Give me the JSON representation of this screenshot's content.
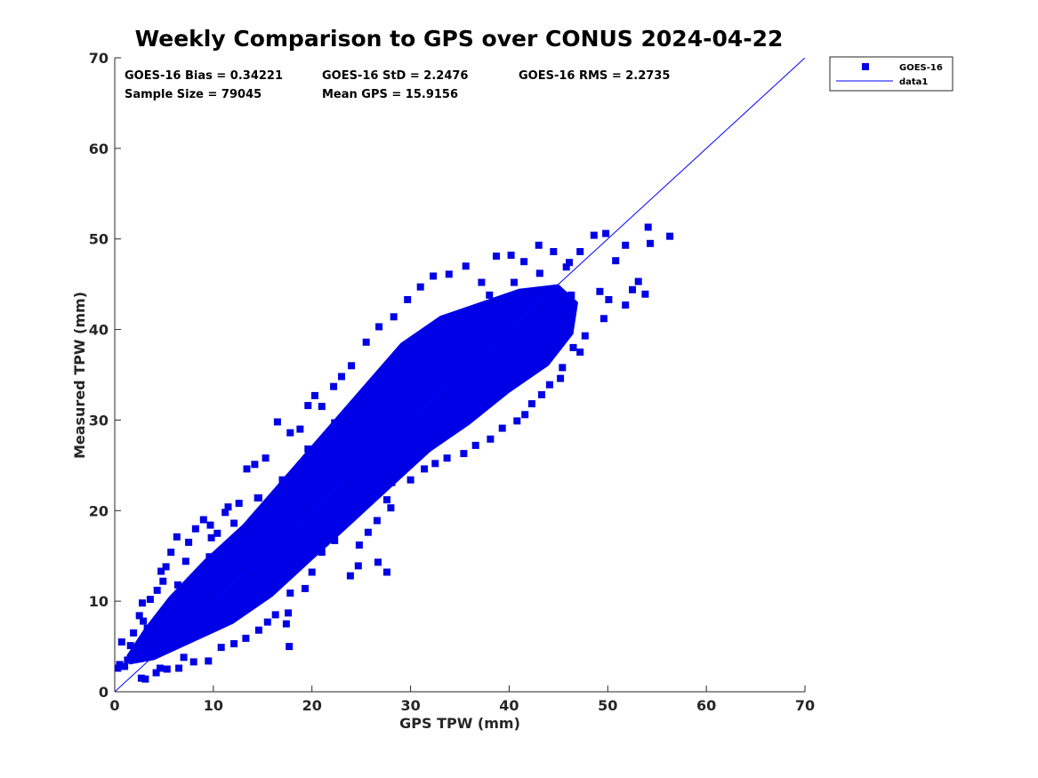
{
  "chart_data": {
    "type": "scatter",
    "title": "Weekly Comparison to GPS over CONUS 2024-04-22",
    "xlabel": "GPS TPW (mm)",
    "ylabel": "Measured TPW (mm)",
    "xlim": [
      0,
      70
    ],
    "ylim": [
      0,
      70
    ],
    "xticks": [
      "0",
      "10",
      "20",
      "30",
      "40",
      "50",
      "60",
      "70"
    ],
    "yticks": [
      "0",
      "10",
      "20",
      "30",
      "40",
      "50",
      "60",
      "70"
    ],
    "grid": false,
    "legend_position": "outside top-right",
    "colors": {
      "marker": "#0000e6",
      "line": "#0000ff"
    },
    "stats": [
      "GOES-16 Bias = 0.34221",
      "GOES-16 StD = 2.2476",
      "GOES-16 RMS = 2.2735",
      "Sample Size = 79045",
      "Mean GPS = 15.9156"
    ],
    "series": [
      {
        "name": "GOES-16",
        "kind": "scatter",
        "marker": "square",
        "points": [
          [
            0.3,
            2.6
          ],
          [
            0.5,
            3.0
          ],
          [
            0.7,
            5.5
          ],
          [
            1.0,
            2.8
          ],
          [
            1.3,
            3.5
          ],
          [
            1.6,
            5.1
          ],
          [
            1.9,
            6.5
          ],
          [
            2.2,
            4.2
          ],
          [
            2.5,
            8.4
          ],
          [
            2.8,
            9.8
          ],
          [
            2.7,
            1.5
          ],
          [
            3.1,
            1.4
          ],
          [
            3.3,
            7.0
          ],
          [
            3.6,
            10.2
          ],
          [
            4.0,
            4.8
          ],
          [
            4.3,
            11.2
          ],
          [
            4.7,
            13.3
          ],
          [
            4.6,
            2.6
          ],
          [
            5.2,
            13.8
          ],
          [
            5.7,
            15.4
          ],
          [
            6.3,
            17.1
          ],
          [
            7.0,
            3.8
          ],
          [
            7.5,
            16.5
          ],
          [
            8.2,
            18.0
          ],
          [
            9.0,
            19.0
          ],
          [
            9.7,
            18.4
          ],
          [
            10.4,
            17.5
          ],
          [
            11.2,
            19.8
          ],
          [
            11.5,
            20.4
          ],
          [
            12.6,
            20.8
          ],
          [
            13.4,
            24.6
          ],
          [
            14.2,
            25.1
          ],
          [
            15.3,
            25.8
          ],
          [
            16.5,
            29.8
          ],
          [
            17.0,
            23.4
          ],
          [
            17.8,
            28.6
          ],
          [
            18.8,
            29.0
          ],
          [
            19.6,
            31.6
          ],
          [
            20.3,
            32.7
          ],
          [
            21.0,
            31.5
          ],
          [
            22.2,
            33.7
          ],
          [
            23.0,
            34.8
          ],
          [
            24.0,
            36.0
          ],
          [
            25.5,
            38.6
          ],
          [
            26.8,
            40.3
          ],
          [
            28.3,
            41.4
          ],
          [
            29.7,
            43.3
          ],
          [
            31.0,
            44.7
          ],
          [
            32.3,
            45.9
          ],
          [
            33.9,
            46.1
          ],
          [
            35.6,
            47.0
          ],
          [
            37.2,
            45.2
          ],
          [
            38.7,
            48.1
          ],
          [
            40.2,
            48.2
          ],
          [
            41.5,
            47.5
          ],
          [
            43.0,
            49.3
          ],
          [
            44.5,
            48.6
          ],
          [
            46.1,
            47.4
          ],
          [
            47.2,
            48.6
          ],
          [
            48.6,
            50.4
          ],
          [
            49.8,
            50.6
          ],
          [
            50.8,
            47.6
          ],
          [
            51.8,
            49.3
          ],
          [
            53.1,
            45.3
          ],
          [
            54.1,
            51.3
          ],
          [
            54.3,
            49.5
          ],
          [
            56.3,
            50.3
          ],
          [
            49.2,
            44.2
          ],
          [
            50.1,
            43.3
          ],
          [
            51.8,
            42.7
          ],
          [
            52.5,
            44.4
          ],
          [
            53.8,
            43.9
          ],
          [
            49.6,
            41.2
          ],
          [
            47.7,
            39.3
          ],
          [
            47.2,
            37.5
          ],
          [
            46.5,
            38.0
          ],
          [
            45.4,
            35.8
          ],
          [
            45.2,
            34.6
          ],
          [
            44.1,
            33.9
          ],
          [
            43.3,
            32.8
          ],
          [
            42.3,
            31.8
          ],
          [
            41.6,
            30.6
          ],
          [
            40.8,
            29.9
          ],
          [
            39.3,
            29.1
          ],
          [
            38.1,
            27.9
          ],
          [
            36.6,
            27.2
          ],
          [
            35.4,
            26.3
          ],
          [
            33.7,
            25.8
          ],
          [
            32.5,
            25.2
          ],
          [
            31.4,
            24.6
          ],
          [
            30.0,
            23.4
          ],
          [
            28.1,
            23.1
          ],
          [
            28.0,
            20.3
          ],
          [
            27.6,
            21.2
          ],
          [
            26.6,
            18.9
          ],
          [
            25.7,
            17.6
          ],
          [
            26.7,
            14.3
          ],
          [
            27.6,
            13.2
          ],
          [
            24.8,
            16.2
          ],
          [
            24.7,
            13.9
          ],
          [
            23.9,
            12.8
          ],
          [
            22.3,
            16.7
          ],
          [
            21.0,
            15.4
          ],
          [
            20.0,
            13.2
          ],
          [
            19.3,
            11.4
          ],
          [
            17.8,
            10.9
          ],
          [
            17.6,
            8.7
          ],
          [
            17.4,
            7.5
          ],
          [
            17.7,
            5.0
          ],
          [
            16.3,
            8.5
          ],
          [
            15.5,
            7.7
          ],
          [
            14.6,
            6.8
          ],
          [
            13.3,
            5.9
          ],
          [
            12.1,
            5.3
          ],
          [
            10.8,
            4.9
          ],
          [
            9.5,
            3.4
          ],
          [
            8.0,
            3.3
          ],
          [
            6.5,
            2.6
          ],
          [
            5.3,
            2.5
          ],
          [
            4.2,
            2.1
          ],
          [
            22.1,
            22.8
          ],
          [
            27.8,
            32.5
          ],
          [
            34.5,
            36.9
          ],
          [
            24.6,
            30.8
          ],
          [
            31.2,
            33.6
          ],
          [
            37.8,
            39.6
          ],
          [
            40.8,
            42.3
          ],
          [
            43.8,
            38.4
          ],
          [
            18.9,
            23.7
          ],
          [
            14.6,
            21.4
          ],
          [
            12.4,
            15.3
          ],
          [
            9.6,
            14.9
          ],
          [
            7.9,
            9.6
          ],
          [
            6.4,
            11.8
          ],
          [
            5.7,
            8.6
          ],
          [
            11.5,
            10.8
          ],
          [
            13.9,
            13.1
          ],
          [
            16.4,
            16.4
          ],
          [
            19.5,
            19.5
          ],
          [
            25.0,
            24.3
          ],
          [
            29.3,
            28.2
          ],
          [
            33.0,
            31.5
          ],
          [
            36.2,
            34.2
          ],
          [
            39.4,
            36.6
          ],
          [
            42.2,
            40.1
          ],
          [
            45.0,
            41.3
          ],
          [
            46.3,
            43.8
          ],
          [
            38.2,
            33.2
          ],
          [
            34.4,
            30.4
          ],
          [
            30.5,
            27.2
          ],
          [
            26.8,
            25.2
          ],
          [
            23.6,
            20.8
          ],
          [
            21.1,
            18.5
          ],
          [
            18.2,
            15.6
          ],
          [
            15.8,
            12.7
          ],
          [
            13.5,
            10.6
          ],
          [
            11.1,
            8.6
          ],
          [
            8.8,
            6.8
          ],
          [
            6.2,
            5.4
          ],
          [
            4.4,
            4.6
          ],
          [
            3.2,
            5.9
          ],
          [
            2.9,
            7.8
          ],
          [
            4.9,
            12.2
          ],
          [
            7.2,
            14.4
          ],
          [
            9.8,
            17.0
          ],
          [
            12.1,
            18.6
          ],
          [
            14.5,
            21.4
          ],
          [
            17.1,
            23.2
          ],
          [
            19.6,
            26.8
          ],
          [
            22.3,
            29.7
          ],
          [
            25.0,
            32.0
          ],
          [
            27.4,
            34.4
          ],
          [
            30.1,
            37.2
          ],
          [
            32.9,
            39.2
          ],
          [
            35.5,
            41.7
          ],
          [
            38.0,
            43.8
          ],
          [
            40.5,
            45.2
          ],
          [
            43.1,
            46.2
          ],
          [
            45.8,
            46.9
          ],
          [
            42.0,
            43.4
          ]
        ]
      },
      {
        "name": "data1",
        "kind": "line",
        "points": [
          [
            0,
            0
          ],
          [
            70,
            70
          ]
        ]
      }
    ]
  }
}
